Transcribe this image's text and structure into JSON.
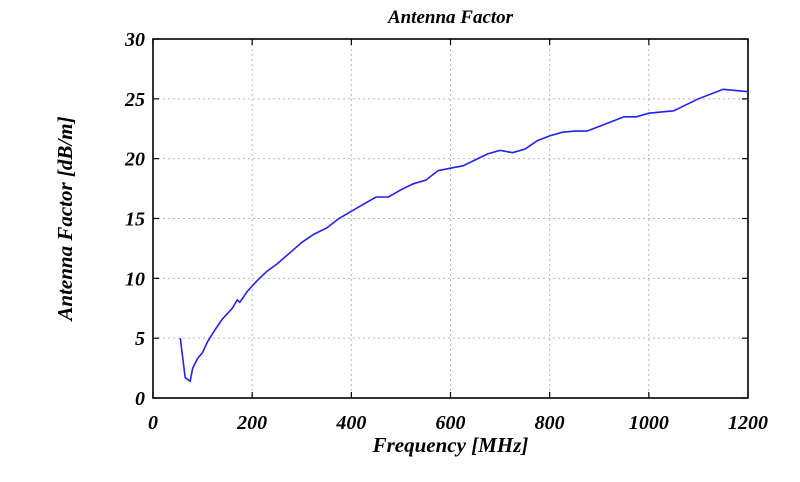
{
  "chart_data": {
    "type": "line",
    "title": "Antenna Factor",
    "xlabel": "Frequency [MHz]",
    "ylabel": "Antenna Factor [dB/m]",
    "xlim": [
      0,
      1200
    ],
    "ylim": [
      0,
      30
    ],
    "xticks": [
      0,
      200,
      400,
      600,
      800,
      1000,
      1200
    ],
    "yticks": [
      0,
      5,
      10,
      15,
      20,
      25,
      30
    ],
    "grid": true,
    "series": [
      {
        "color": "#2222ee",
        "x": [
          55,
          65,
          75,
          80,
          90,
          100,
          110,
          125,
          140,
          160,
          170,
          175,
          190,
          210,
          230,
          250,
          275,
          300,
          325,
          350,
          375,
          400,
          425,
          450,
          475,
          500,
          525,
          550,
          575,
          600,
          625,
          650,
          675,
          700,
          725,
          750,
          775,
          800,
          825,
          850,
          875,
          900,
          925,
          950,
          975,
          1000,
          1050,
          1100,
          1150,
          1200
        ],
        "y": [
          5.0,
          1.7,
          1.4,
          2.5,
          3.3,
          3.8,
          4.7,
          5.7,
          6.6,
          7.5,
          8.2,
          8.0,
          8.9,
          9.8,
          10.6,
          11.2,
          12.1,
          13.0,
          13.7,
          14.2,
          15.0,
          15.6,
          16.2,
          16.8,
          16.8,
          17.4,
          17.9,
          18.2,
          19.0,
          19.2,
          19.4,
          19.9,
          20.4,
          20.7,
          20.5,
          20.8,
          21.5,
          21.9,
          22.2,
          22.3,
          22.3,
          22.7,
          23.1,
          23.5,
          23.5,
          23.8,
          24.0,
          25.0,
          25.8,
          25.6
        ]
      }
    ]
  }
}
